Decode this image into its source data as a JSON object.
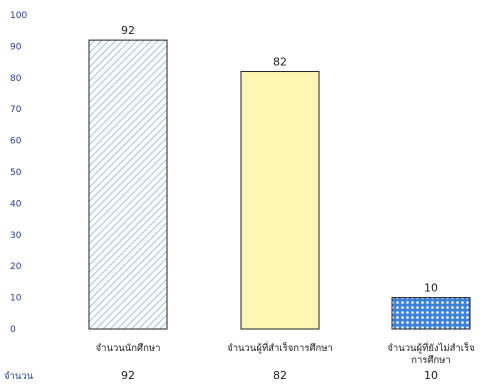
{
  "chart_data": {
    "type": "bar",
    "categories": [
      "จำนวนนักศึกษา",
      "จำนวนผู้ที่สำเร็จการศึกษา",
      "จำนวนผู้ที่ยังไม่สำเร็จการศึกษา"
    ],
    "category_lines": [
      [
        "จำนวนนักศึกษา"
      ],
      [
        "จำนวนผู้ที่สำเร็จการศึกษา"
      ],
      [
        "จำนวนผู้ที่ยังไม่สำเร็จ",
        "การศึกษา"
      ]
    ],
    "values": [
      92,
      82,
      10
    ],
    "ylim": [
      0,
      100
    ],
    "yticks": [
      0,
      10,
      20,
      30,
      40,
      50,
      60,
      70,
      80,
      90,
      100
    ],
    "grid": false,
    "legend": "none",
    "table_row_label": "จำนวน",
    "bar_styles": [
      {
        "pattern": "diagonal-stripes",
        "fill": "#ffffff",
        "pattern_color": "#9ec4e4"
      },
      {
        "pattern": "solid",
        "fill": "#fff6b3"
      },
      {
        "pattern": "dots",
        "fill": "#3b82d8",
        "pattern_color": "#ffffff"
      }
    ],
    "axis_text_color": "#1f3f8f"
  }
}
